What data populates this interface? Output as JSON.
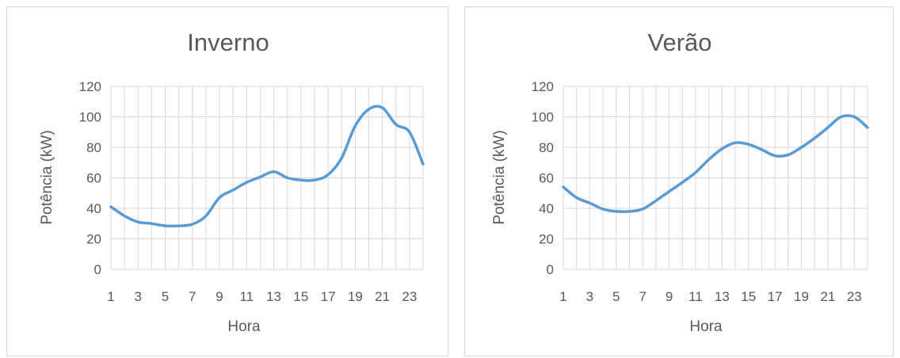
{
  "chart_data": [
    {
      "type": "line",
      "title": "Inverno",
      "xlabel": "Hora",
      "ylabel": "Potência (kW)",
      "ylim": [
        0,
        120
      ],
      "yticks": [
        "0",
        "20",
        "40",
        "60",
        "80",
        "100",
        "120"
      ],
      "xtick_labels": [
        "1",
        "3",
        "5",
        "7",
        "9",
        "11",
        "13",
        "15",
        "17",
        "19",
        "21",
        "23"
      ],
      "grid": true,
      "line_color": "#5b9bd5",
      "x": [
        1,
        2,
        3,
        4,
        5,
        6,
        7,
        8,
        9,
        10,
        11,
        12,
        13,
        14,
        15,
        16,
        17,
        18,
        19,
        20,
        21,
        22,
        23,
        24
      ],
      "series": [
        {
          "values": [
            41,
            35,
            31,
            30,
            28.5,
            28.5,
            29.5,
            35,
            47,
            52,
            57,
            60.5,
            64,
            60,
            58.5,
            58.5,
            62,
            73,
            94,
            105,
            106,
            95,
            90,
            69
          ]
        }
      ]
    },
    {
      "type": "line",
      "title": "Verão",
      "xlabel": "Hora",
      "ylabel": "Potência (kW)",
      "ylim": [
        0,
        120
      ],
      "yticks": [
        "0",
        "20",
        "40",
        "60",
        "80",
        "100",
        "120"
      ],
      "xtick_labels": [
        "1",
        "3",
        "5",
        "7",
        "9",
        "11",
        "13",
        "15",
        "17",
        "19",
        "21",
        "23"
      ],
      "grid": true,
      "line_color": "#5b9bd5",
      "x": [
        1,
        2,
        3,
        4,
        5,
        6,
        7,
        8,
        9,
        10,
        11,
        12,
        13,
        14,
        15,
        16,
        17,
        18,
        19,
        20,
        21,
        22,
        23,
        24
      ],
      "series": [
        {
          "values": [
            54,
            47,
            43.5,
            39.5,
            38,
            38,
            39.5,
            45,
            51,
            57,
            63.5,
            72,
            79,
            83,
            82,
            78.5,
            74.5,
            75,
            80,
            86,
            93,
            100,
            100,
            93
          ]
        }
      ]
    }
  ]
}
